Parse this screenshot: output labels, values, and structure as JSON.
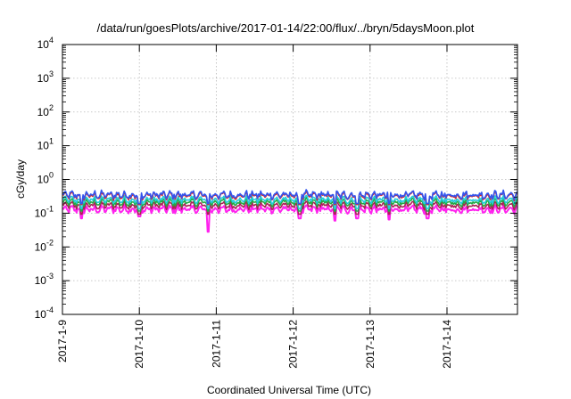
{
  "chart_data": {
    "type": "line",
    "title": "/data/run/goesPlots/archive/2017-01-14/22:00/flux/../bryn/5daysMoon.plot",
    "xlabel": "Coordinated Universal Time (UTC)",
    "ylabel": "cGy/day",
    "yscale": "log",
    "ylim": [
      0.0001,
      10000
    ],
    "y_ticks": [
      {
        "value": 0.0001,
        "base": "10",
        "exp": "-4"
      },
      {
        "value": 0.001,
        "base": "10",
        "exp": "-3"
      },
      {
        "value": 0.01,
        "base": "10",
        "exp": "-2"
      },
      {
        "value": 0.1,
        "base": "10",
        "exp": "-1"
      },
      {
        "value": 1,
        "base": "10",
        "exp": "0"
      },
      {
        "value": 10,
        "base": "10",
        "exp": "1"
      },
      {
        "value": 100,
        "base": "10",
        "exp": "2"
      },
      {
        "value": 1000,
        "base": "10",
        "exp": "3"
      },
      {
        "value": 10000,
        "base": "10",
        "exp": "4"
      }
    ],
    "x_ticks": [
      "2017-1-9",
      "2017-1-10",
      "2017-1-11",
      "2017-1-12",
      "2017-1-13",
      "2017-1-14"
    ],
    "xlim": [
      "2017-01-09T00:00",
      "2017-01-14T22:00"
    ],
    "grid": true,
    "legend": "none",
    "series": [
      {
        "color": "#3355ee",
        "level": 0.35
      },
      {
        "color": "#dd2222",
        "level": 0.33
      },
      {
        "color": "#22ccdd",
        "level": 0.25
      },
      {
        "color": "#22aa44",
        "level": 0.21
      },
      {
        "color": "#aa2255",
        "level": 0.17
      },
      {
        "color": "#ff22ee",
        "level": 0.13,
        "dips": [
          {
            "x": "2017-01-09T06:00",
            "y": 0.07
          },
          {
            "x": "2017-01-10T00:00",
            "y": 0.08
          },
          {
            "x": "2017-01-10T21:30",
            "y": 0.028
          },
          {
            "x": "2017-01-12T02:00",
            "y": 0.07
          },
          {
            "x": "2017-01-12T13:00",
            "y": 0.06
          },
          {
            "x": "2017-01-12T20:00",
            "y": 0.07
          },
          {
            "x": "2017-01-13T06:00",
            "y": 0.065
          },
          {
            "x": "2017-01-13T18:00",
            "y": 0.07
          }
        ]
      }
    ]
  }
}
